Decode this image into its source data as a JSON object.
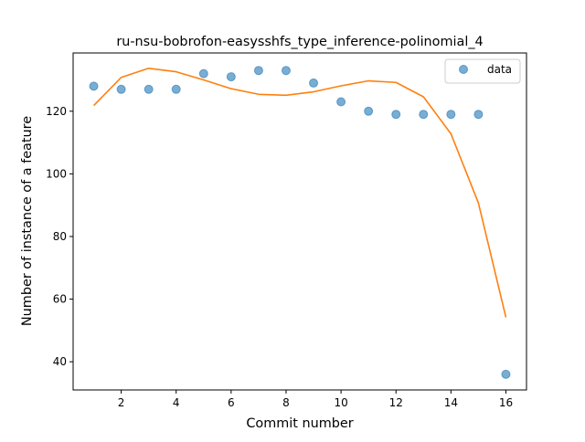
{
  "chart_data": {
    "type": "scatter",
    "title": "ru-nsu-bobrofon-easysshfs_type_inference-polinomial_4",
    "xlabel": "Commit number",
    "ylabel": "Number of instance of a feature",
    "xlim": [
      0.25,
      16.75
    ],
    "ylim": [
      31.0,
      138.6
    ],
    "xticks": [
      2,
      4,
      6,
      8,
      10,
      12,
      14,
      16
    ],
    "yticks": [
      40,
      60,
      80,
      100,
      120
    ],
    "grid": false,
    "legend_position": "top-right",
    "series": [
      {
        "name": "data",
        "kind": "scatter",
        "color": "#1f77b4",
        "x": [
          1,
          2,
          3,
          4,
          5,
          6,
          7,
          8,
          9,
          10,
          11,
          12,
          13,
          14,
          15,
          16
        ],
        "y": [
          128,
          127,
          127,
          127,
          132,
          131,
          133,
          133,
          129,
          123,
          120,
          119,
          119,
          119,
          119,
          36
        ]
      },
      {
        "kind": "line",
        "color": "#ff7f0e",
        "x": [
          1,
          2,
          3,
          4,
          5,
          6,
          7,
          8,
          9,
          10,
          11,
          12,
          13,
          14,
          15,
          16
        ],
        "y": [
          121.8,
          130.8,
          133.7,
          132.6,
          130.0,
          127.2,
          125.4,
          125.1,
          126.2,
          128.1,
          129.7,
          129.2,
          124.6,
          112.8,
          90.7,
          54.2
        ]
      }
    ]
  }
}
